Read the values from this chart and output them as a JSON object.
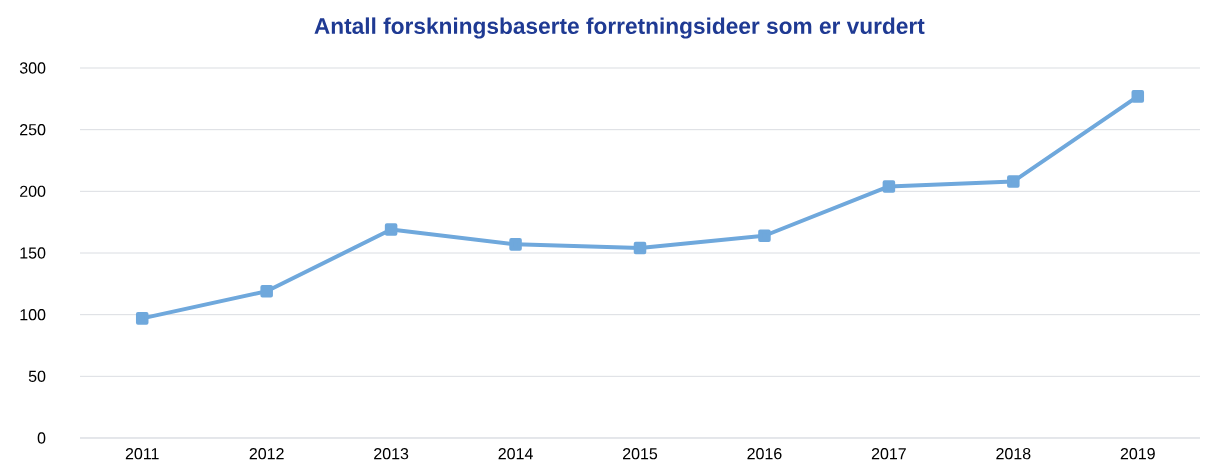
{
  "chart_data": {
    "type": "line",
    "title": "Antall forskningsbaserte forretningsideer som er vurdert",
    "categories": [
      "2011",
      "2012",
      "2013",
      "2014",
      "2015",
      "2016",
      "2017",
      "2018",
      "2019"
    ],
    "series": [
      {
        "color": "#6fa8dc",
        "values": [
          97,
          119,
          169,
          157,
          154,
          164,
          204,
          208,
          277
        ]
      }
    ],
    "ylim": [
      0,
      300
    ],
    "yticks": [
      0,
      50,
      100,
      150,
      200,
      250,
      300
    ],
    "grid": "y",
    "marker": "square",
    "line_style": "solid"
  }
}
